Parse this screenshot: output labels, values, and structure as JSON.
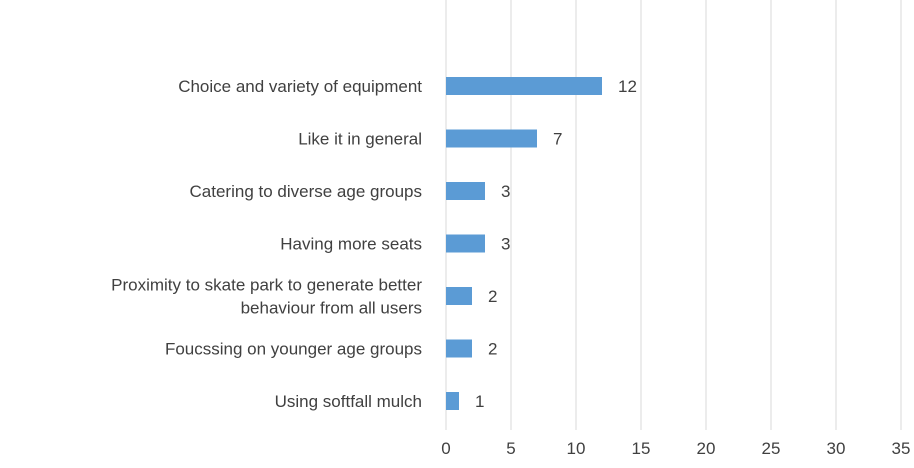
{
  "chart_data": {
    "type": "bar",
    "orientation": "horizontal",
    "categories": [
      "Choice and variety of equipment",
      "Like it in general",
      "Catering to diverse age groups",
      "Having more seats",
      "Proximity to skate park to generate better behaviour from all users",
      "Foucssing on younger age groups",
      "Using softfall mulch"
    ],
    "category_lines": [
      [
        "Choice and variety of equipment"
      ],
      [
        "Like it in general"
      ],
      [
        "Catering to diverse age groups"
      ],
      [
        "Having more seats"
      ],
      [
        "Proximity to skate park to generate better",
        "behaviour from all users"
      ],
      [
        "Foucssing on younger age groups"
      ],
      [
        "Using softfall mulch"
      ]
    ],
    "values": [
      12,
      7,
      3,
      3,
      2,
      2,
      1
    ],
    "xlim": [
      0,
      35
    ],
    "xticks": [
      0,
      5,
      10,
      15,
      20,
      25,
      30,
      35
    ],
    "grid": "vertical",
    "bar_color": "#5B9BD5",
    "grid_color": "#D9D9D9",
    "text_color": "#404040",
    "title": "",
    "xlabel": "",
    "ylabel": ""
  }
}
